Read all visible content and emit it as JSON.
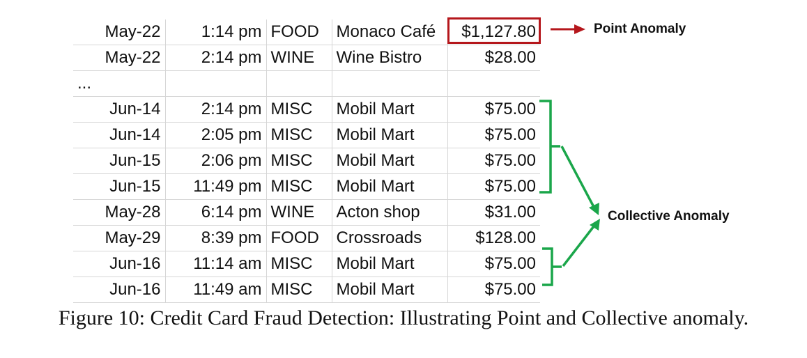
{
  "rows": [
    {
      "date": "May-22",
      "time": "1:14 pm",
      "category": "FOOD",
      "merchant": "Monaco Café",
      "amount": "$1,127.80"
    },
    {
      "date": "May-22",
      "time": "2:14 pm",
      "category": "WINE",
      "merchant": "Wine Bistro",
      "amount": "$28.00"
    },
    {
      "date": "...",
      "time": "",
      "category": "",
      "merchant": "",
      "amount": ""
    },
    {
      "date": "Jun-14",
      "time": "2:14 pm",
      "category": "MISC",
      "merchant": "Mobil Mart",
      "amount": "$75.00"
    },
    {
      "date": "Jun-14",
      "time": "2:05 pm",
      "category": "MISC",
      "merchant": "Mobil Mart",
      "amount": "$75.00"
    },
    {
      "date": "Jun-15",
      "time": "2:06 pm",
      "category": "MISC",
      "merchant": "Mobil Mart",
      "amount": "$75.00"
    },
    {
      "date": "Jun-15",
      "time": "11:49 pm",
      "category": "MISC",
      "merchant": "Mobil Mart",
      "amount": "$75.00"
    },
    {
      "date": "May-28",
      "time": "6:14 pm",
      "category": "WINE",
      "merchant": "Acton shop",
      "amount": "$31.00"
    },
    {
      "date": "May-29",
      "time": "8:39 pm",
      "category": "FOOD",
      "merchant": "Crossroads",
      "amount": "$128.00"
    },
    {
      "date": "Jun-16",
      "time": "11:14 am",
      "category": "MISC",
      "merchant": "Mobil Mart",
      "amount": "$75.00"
    },
    {
      "date": "Jun-16",
      "time": "11:49 am",
      "category": "MISC",
      "merchant": "Mobil Mart",
      "amount": "$75.00"
    }
  ],
  "annotations": {
    "point_label": "Point Anomaly",
    "collective_label": "Collective Anomaly",
    "point_color": "#b5171c",
    "collective_color": "#1aa64a"
  },
  "caption": "Figure 10: Credit Card Fraud Detection: Illustrating Point and Collective anomaly."
}
